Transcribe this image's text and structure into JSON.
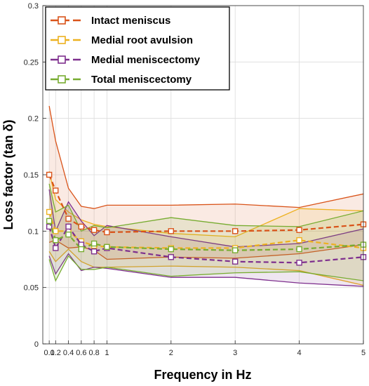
{
  "chart_data": {
    "type": "line",
    "xlabel": "Frequency in Hz",
    "ylabel": "Loss factor (tan δ)",
    "xlim": [
      0,
      5
    ],
    "ylim": [
      0,
      0.3
    ],
    "xticks": [
      0.1,
      0.2,
      0.4,
      0.6,
      0.8,
      1,
      2,
      3,
      4,
      5
    ],
    "xtick_labels": [
      "0.1",
      "0.2",
      "0.4",
      "0.6",
      "0.8",
      "1",
      "2",
      "3",
      "4",
      "5"
    ],
    "yticks": [
      0,
      0.05,
      0.1,
      0.15,
      0.2,
      0.25,
      0.3
    ],
    "ytick_labels": [
      "0",
      "0.05",
      "0.1",
      "0.15",
      "0.2",
      "0.25",
      "0.3"
    ],
    "grid": true,
    "legend_position": "top-left",
    "x": [
      0.1,
      0.2,
      0.4,
      0.6,
      0.8,
      1,
      2,
      3,
      4,
      5
    ],
    "series": [
      {
        "name": "Intact meniscus",
        "color": "#d95319",
        "values": [
          0.15,
          0.136,
          0.111,
          0.104,
          0.101,
          0.099,
          0.1,
          0.1,
          0.101,
          0.106
        ],
        "upper": [
          0.211,
          0.18,
          0.138,
          0.122,
          0.12,
          0.123,
          0.123,
          0.124,
          0.121,
          0.133
        ],
        "lower": [
          0.09,
          0.092,
          0.085,
          0.086,
          0.083,
          0.075,
          0.077,
          0.076,
          0.08,
          0.088
        ]
      },
      {
        "name": "Medial root avulsion",
        "color": "#edb120",
        "values": [
          0.117,
          0.1,
          0.1,
          0.091,
          0.087,
          0.086,
          0.085,
          0.085,
          0.092,
          0.085
        ],
        "upper": [
          0.153,
          0.128,
          0.117,
          0.11,
          0.106,
          0.104,
          0.098,
          0.095,
          0.12,
          0.118
        ],
        "lower": [
          0.082,
          0.073,
          0.084,
          0.073,
          0.068,
          0.068,
          0.069,
          0.068,
          0.065,
          0.052
        ]
      },
      {
        "name": "Medial meniscectomy",
        "color": "#7e2f8e",
        "values": [
          0.104,
          0.085,
          0.104,
          0.088,
          0.082,
          0.085,
          0.077,
          0.073,
          0.072,
          0.077
        ],
        "upper": [
          0.137,
          0.1,
          0.126,
          0.109,
          0.096,
          0.105,
          0.095,
          0.086,
          0.089,
          0.102
        ],
        "lower": [
          0.078,
          0.062,
          0.08,
          0.065,
          0.068,
          0.067,
          0.059,
          0.059,
          0.054,
          0.051
        ]
      },
      {
        "name": "Total meniscectomy",
        "color": "#77ac30",
        "values": [
          0.109,
          0.092,
          0.097,
          0.084,
          0.089,
          0.086,
          0.084,
          0.083,
          0.084,
          0.088
        ],
        "upper": [
          0.142,
          0.117,
          0.123,
          0.1,
          0.105,
          0.103,
          0.112,
          0.105,
          0.104,
          0.118
        ],
        "lower": [
          0.075,
          0.056,
          0.078,
          0.066,
          0.066,
          0.068,
          0.06,
          0.063,
          0.064,
          0.056
        ]
      }
    ]
  }
}
